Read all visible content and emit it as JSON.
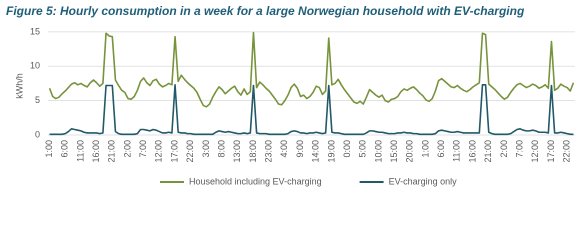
{
  "chart_data": {
    "type": "line",
    "title": "Figure 5: Hourly consumption in a week for a large Norwegian household with EV-charging",
    "y_label": "kWh/h",
    "ylim": [
      0,
      16
    ],
    "yticks": [
      0,
      5,
      10,
      15
    ],
    "grid": true,
    "categories": [
      "1:00",
      null,
      null,
      null,
      null,
      "6:00",
      null,
      null,
      null,
      null,
      "11:00",
      null,
      null,
      null,
      null,
      "16:00",
      null,
      null,
      null,
      null,
      "21:00",
      null,
      null,
      null,
      null,
      "2:00",
      null,
      null,
      null,
      null,
      "7:00",
      null,
      null,
      null,
      null,
      "12:00",
      null,
      null,
      null,
      null,
      "17:00",
      null,
      null,
      null,
      null,
      "22:00",
      null,
      null,
      null,
      null,
      "3:00",
      null,
      null,
      null,
      null,
      "8:00",
      null,
      null,
      null,
      null,
      "13:00",
      null,
      null,
      null,
      null,
      "18:00",
      null,
      null,
      null,
      null,
      "23:00",
      null,
      null,
      null,
      null,
      "4:00",
      null,
      null,
      null,
      null,
      "9:00",
      null,
      null,
      null,
      null,
      "14:00",
      null,
      null,
      null,
      null,
      "19:00",
      null,
      null,
      null,
      null,
      "0:00",
      null,
      null,
      null,
      null,
      "5:00",
      null,
      null,
      null,
      null,
      "10:00",
      null,
      null,
      null,
      null,
      "15:00",
      null,
      null,
      null,
      null,
      "20:00",
      null,
      null,
      null,
      null,
      "1:00",
      null,
      null,
      null,
      null,
      "6:00",
      null,
      null,
      null,
      null,
      "11:00",
      null,
      null,
      null,
      null,
      "16:00",
      null,
      null,
      null,
      null,
      "21:00",
      null,
      null,
      null,
      null,
      "2:00",
      null,
      null,
      null,
      null,
      "7:00",
      null,
      null,
      null,
      null,
      "12:00",
      null,
      null,
      null,
      null,
      "17:00",
      null,
      null,
      null,
      null,
      "22:00",
      null,
      null
    ],
    "series": [
      {
        "name": "Household including EV-charging",
        "color": "#77933c",
        "values": [
          6.8,
          5.6,
          5.3,
          5.5,
          6.0,
          6.4,
          6.9,
          7.4,
          7.6,
          7.3,
          7.5,
          7.2,
          7.0,
          7.6,
          8.0,
          7.6,
          7.1,
          7.5,
          14.8,
          14.4,
          14.3,
          8.0,
          7.2,
          6.5,
          6.2,
          5.3,
          5.2,
          5.6,
          6.5,
          7.8,
          8.3,
          7.6,
          7.2,
          7.9,
          8.1,
          7.4,
          7.0,
          7.2,
          7.5,
          7.3,
          14.3,
          7.8,
          8.7,
          8.1,
          7.6,
          7.2,
          6.8,
          6.2,
          5.2,
          4.3,
          4.1,
          4.5,
          5.5,
          6.3,
          7.0,
          6.6,
          6.0,
          6.4,
          6.8,
          7.1,
          6.3,
          5.8,
          6.7,
          5.9,
          6.3,
          14.9,
          6.9,
          7.7,
          7.3,
          6.8,
          6.4,
          5.8,
          5.2,
          4.5,
          4.4,
          5.0,
          5.8,
          6.9,
          7.4,
          6.8,
          5.6,
          5.8,
          5.3,
          5.6,
          6.2,
          7.1,
          6.9,
          5.9,
          6.4,
          14.1,
          7.3,
          7.5,
          8.1,
          7.3,
          6.6,
          6.0,
          5.4,
          4.8,
          4.6,
          4.9,
          4.5,
          5.5,
          6.6,
          6.2,
          5.8,
          5.5,
          5.8,
          5.0,
          4.8,
          5.2,
          5.3,
          5.6,
          6.3,
          6.7,
          6.5,
          6.8,
          7.0,
          6.6,
          6.1,
          5.7,
          5.1,
          4.9,
          5.3,
          6.4,
          7.9,
          8.2,
          7.8,
          7.4,
          7.0,
          6.9,
          7.2,
          6.8,
          6.5,
          6.3,
          6.6,
          7.0,
          7.3,
          7.6,
          14.8,
          14.6,
          7.4,
          7.0,
          6.6,
          6.1,
          5.6,
          5.2,
          5.5,
          6.2,
          6.8,
          7.3,
          7.5,
          7.2,
          6.9,
          7.1,
          7.4,
          7.2,
          6.8,
          7.0,
          7.3,
          6.8,
          13.6,
          6.5,
          6.8,
          7.4,
          7.1,
          6.9,
          6.4,
          7.6
        ]
      },
      {
        "name": "EV-charging only",
        "color": "#215968",
        "values": [
          0.1,
          0.1,
          0.1,
          0.1,
          0.1,
          0.2,
          0.5,
          0.9,
          0.8,
          0.7,
          0.6,
          0.4,
          0.3,
          0.3,
          0.3,
          0.3,
          0.2,
          0.3,
          7.2,
          7.2,
          7.2,
          0.5,
          0.2,
          0.1,
          0.1,
          0.1,
          0.1,
          0.1,
          0.2,
          0.8,
          0.8,
          0.7,
          0.6,
          0.8,
          0.7,
          0.5,
          0.3,
          0.3,
          0.4,
          0.3,
          7.3,
          0.4,
          0.3,
          0.3,
          0.2,
          0.2,
          0.1,
          0.1,
          0.1,
          0.1,
          0.1,
          0.1,
          0.1,
          0.4,
          0.6,
          0.5,
          0.4,
          0.5,
          0.4,
          0.3,
          0.2,
          0.2,
          0.3,
          0.2,
          0.3,
          7.2,
          0.3,
          0.2,
          0.2,
          0.2,
          0.1,
          0.1,
          0.1,
          0.1,
          0.1,
          0.1,
          0.2,
          0.5,
          0.6,
          0.5,
          0.3,
          0.3,
          0.2,
          0.3,
          0.3,
          0.4,
          0.3,
          0.2,
          0.3,
          7.2,
          0.4,
          0.3,
          0.3,
          0.2,
          0.1,
          0.1,
          0.1,
          0.1,
          0.1,
          0.1,
          0.1,
          0.3,
          0.6,
          0.6,
          0.5,
          0.4,
          0.4,
          0.3,
          0.2,
          0.2,
          0.2,
          0.3,
          0.3,
          0.4,
          0.3,
          0.3,
          0.2,
          0.2,
          0.1,
          0.1,
          0.1,
          0.1,
          0.1,
          0.2,
          0.6,
          0.7,
          0.6,
          0.5,
          0.4,
          0.4,
          0.5,
          0.4,
          0.3,
          0.3,
          0.3,
          0.3,
          0.3,
          0.3,
          7.3,
          7.3,
          0.4,
          0.2,
          0.1,
          0.1,
          0.1,
          0.1,
          0.1,
          0.2,
          0.5,
          0.8,
          0.9,
          0.7,
          0.6,
          0.6,
          0.7,
          0.6,
          0.4,
          0.4,
          0.4,
          0.3,
          7.2,
          0.3,
          0.3,
          0.4,
          0.3,
          0.2,
          0.1,
          0.1
        ]
      }
    ]
  }
}
